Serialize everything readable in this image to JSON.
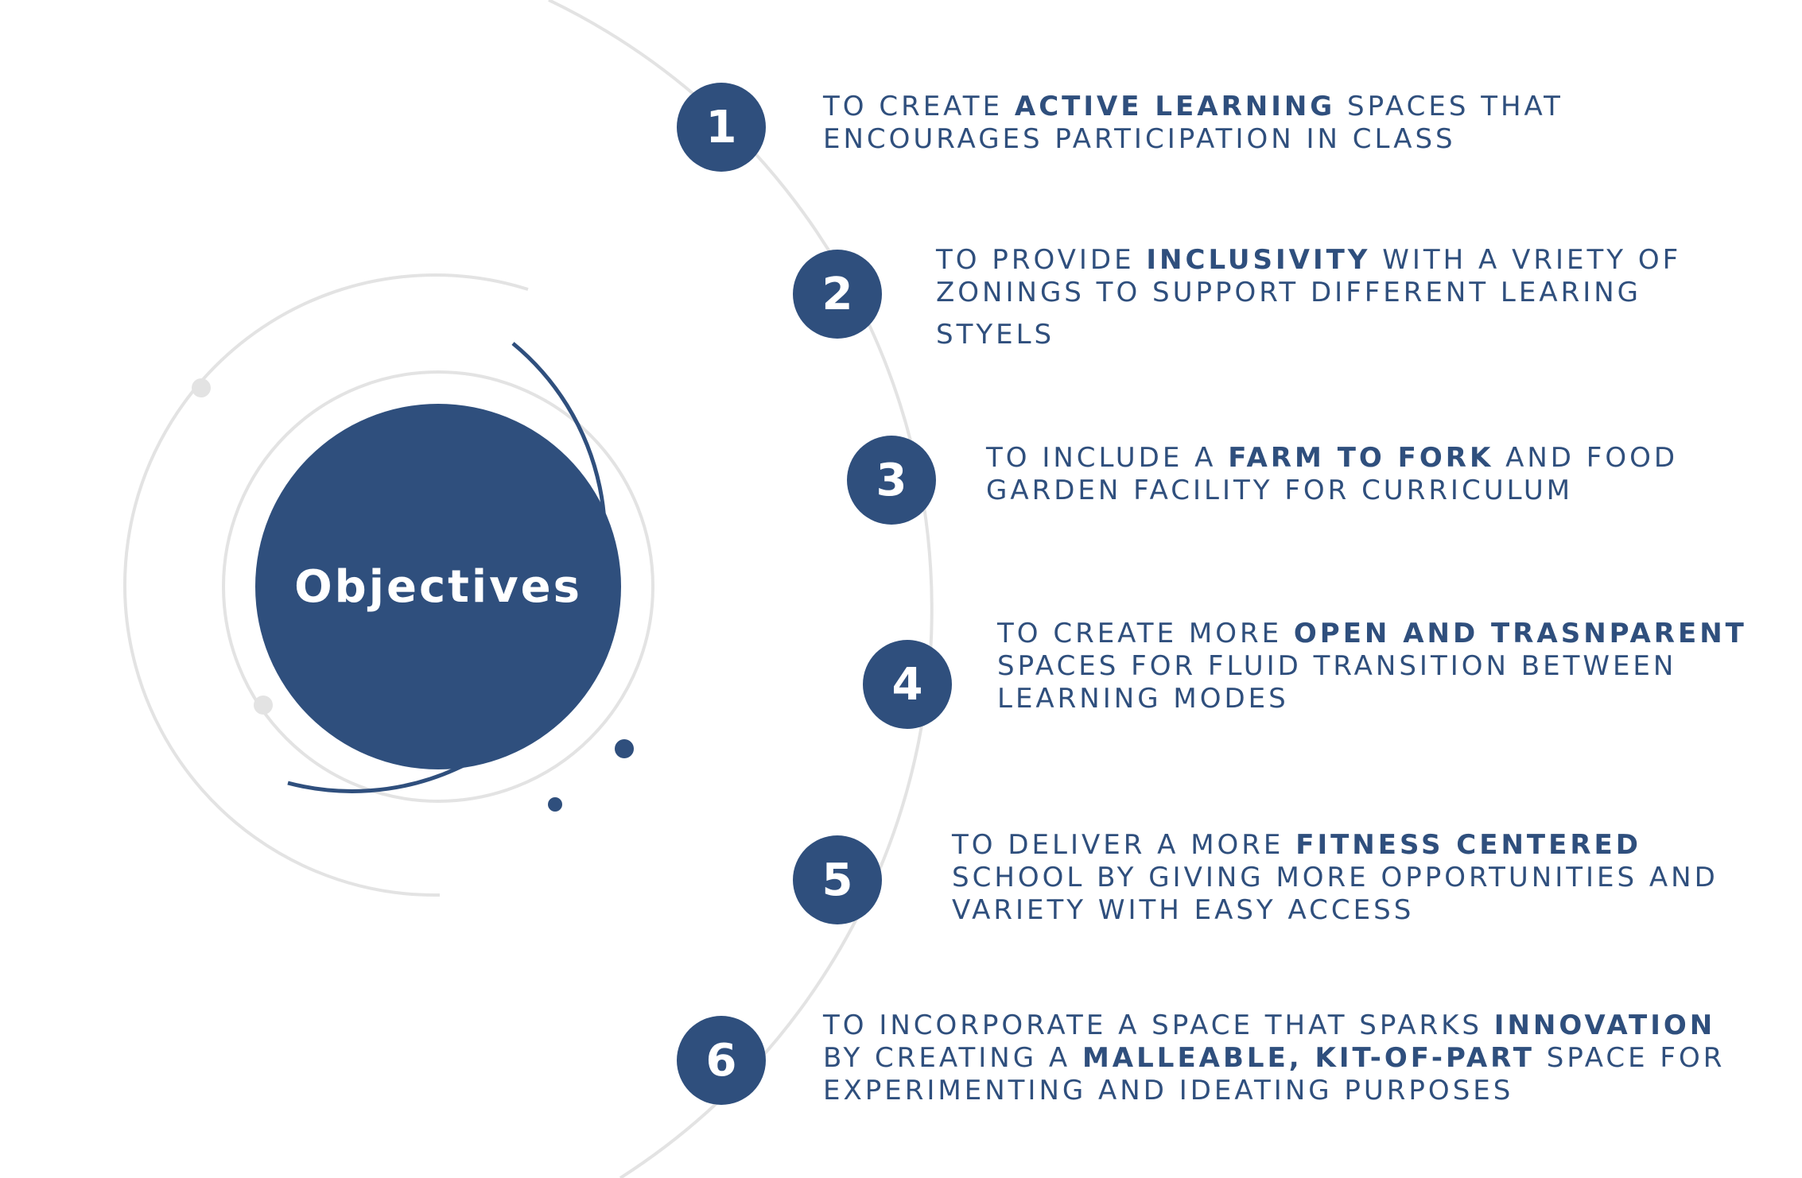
{
  "center": {
    "label": "Objectives"
  },
  "colors": {
    "accent": "#2f4f7d",
    "ring": "#e3e3e3"
  },
  "objectives": [
    {
      "number": "1",
      "lines": [
        [
          {
            "t": "TO CREATE ",
            "b": false
          },
          {
            "t": "ACTIVE LEARNING",
            "b": true
          },
          {
            "t": " SPACES THAT",
            "b": false
          }
        ],
        [
          {
            "t": "ENCOURAGES PARTICIPATION IN CLASS",
            "b": false
          }
        ]
      ]
    },
    {
      "number": "2",
      "lines": [
        [
          {
            "t": "TO PROVIDE ",
            "b": false
          },
          {
            "t": "INCLUSIVITY",
            "b": true
          },
          {
            "t": " WITH A VRIETY OF",
            "b": false
          }
        ],
        [
          {
            "t": "ZONINGS TO SUPPORT DIFFERENT LEARING",
            "b": false
          }
        ],
        [
          {
            "t": "STYELS",
            "b": false
          }
        ]
      ]
    },
    {
      "number": "3",
      "lines": [
        [
          {
            "t": "TO INCLUDE A ",
            "b": false
          },
          {
            "t": "FARM TO FORK",
            "b": true
          },
          {
            "t": " AND FOOD",
            "b": false
          }
        ],
        [
          {
            "t": "GARDEN FACILITY FOR CURRICULUM",
            "b": false
          }
        ]
      ]
    },
    {
      "number": "4",
      "lines": [
        [
          {
            "t": "TO CREATE MORE ",
            "b": false
          },
          {
            "t": "OPEN AND TRASNPARENT",
            "b": true
          }
        ],
        [
          {
            "t": "SPACES FOR FLUID TRANSITION BETWEEN",
            "b": false
          }
        ],
        [
          {
            "t": "LEARNING MODES",
            "b": false
          }
        ]
      ]
    },
    {
      "number": "5",
      "lines": [
        [
          {
            "t": "TO DELIVER A MORE ",
            "b": false
          },
          {
            "t": "FITNESS CENTERED",
            "b": true
          }
        ],
        [
          {
            "t": "SCHOOL BY GIVING MORE OPPORTUNITIES AND",
            "b": false
          }
        ],
        [
          {
            "t": "VARIETY WITH EASY ACCESS",
            "b": false
          }
        ]
      ]
    },
    {
      "number": "6",
      "lines": [
        [
          {
            "t": "TO INCORPORATE A SPACE THAT SPARKS ",
            "b": false
          },
          {
            "t": "INNOVATION",
            "b": true
          }
        ],
        [
          {
            "t": "BY CREATING A ",
            "b": false
          },
          {
            "t": "MALLEABLE, KIT-OF-PART",
            "b": true
          },
          {
            "t": " SPACE FOR",
            "b": false
          }
        ],
        [
          {
            "t": "EXPERIMENTING AND IDEATING PURPOSES",
            "b": false
          }
        ]
      ]
    }
  ]
}
